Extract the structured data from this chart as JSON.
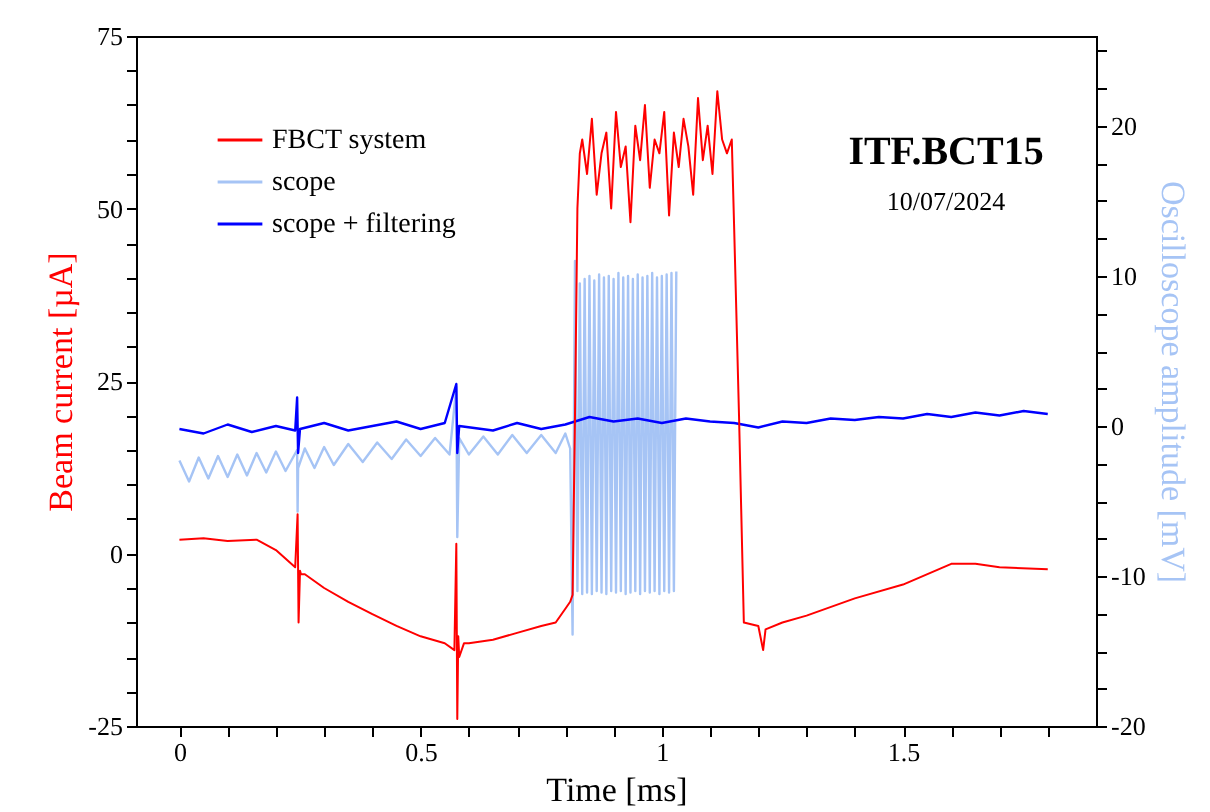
{
  "chart_data": {
    "type": "line",
    "title": "ITF.BCT15",
    "subtitle": "10/07/2024",
    "xlabel": "Time  [ms]",
    "ylabel": "Beam current  [µA]",
    "y2label": "Oscilloscope amplitude  [mV]",
    "xlim": [
      -0.09,
      1.9
    ],
    "xticks": [
      {
        "value": 0,
        "label": "0"
      },
      {
        "value": 0.1,
        "label": null
      },
      {
        "value": 0.2,
        "label": null
      },
      {
        "value": 0.3,
        "label": null
      },
      {
        "value": 0.4,
        "label": null
      },
      {
        "value": 0.5,
        "label": "0.5"
      },
      {
        "value": 0.6,
        "label": null
      },
      {
        "value": 0.7,
        "label": null
      },
      {
        "value": 0.8,
        "label": null
      },
      {
        "value": 0.9,
        "label": null
      },
      {
        "value": 1,
        "label": "1"
      },
      {
        "value": 1.1,
        "label": null
      },
      {
        "value": 1.2,
        "label": null
      },
      {
        "value": 1.3,
        "label": null
      },
      {
        "value": 1.4,
        "label": null
      },
      {
        "value": 1.5,
        "label": "1.5"
      },
      {
        "value": 1.6,
        "label": null
      },
      {
        "value": 1.7,
        "label": null
      },
      {
        "value": 1.8,
        "label": null
      }
    ],
    "ylim": [
      -25,
      75
    ],
    "yticks": [
      {
        "value": -25,
        "label": "-25"
      },
      {
        "value": -20,
        "label": null
      },
      {
        "value": -15,
        "label": null
      },
      {
        "value": -10,
        "label": null
      },
      {
        "value": -5,
        "label": null
      },
      {
        "value": 0,
        "label": "0"
      },
      {
        "value": 5,
        "label": null
      },
      {
        "value": 10,
        "label": null
      },
      {
        "value": 15,
        "label": null
      },
      {
        "value": 20,
        "label": null
      },
      {
        "value": 25,
        "label": "25"
      },
      {
        "value": 30,
        "label": null
      },
      {
        "value": 35,
        "label": null
      },
      {
        "value": 40,
        "label": null
      },
      {
        "value": 45,
        "label": null
      },
      {
        "value": 50,
        "label": "50"
      },
      {
        "value": 55,
        "label": null
      },
      {
        "value": 60,
        "label": null
      },
      {
        "value": 65,
        "label": null
      },
      {
        "value": 70,
        "label": null
      },
      {
        "value": 75,
        "label": "75"
      }
    ],
    "y2lim": [
      -20,
      26
    ],
    "y2ticks": [
      {
        "value": -20,
        "label": "-20"
      },
      {
        "value": -17.5,
        "label": null
      },
      {
        "value": -15,
        "label": null
      },
      {
        "value": -12.5,
        "label": null
      },
      {
        "value": -10,
        "label": "-10"
      },
      {
        "value": -7.5,
        "label": null
      },
      {
        "value": -5,
        "label": null
      },
      {
        "value": -2.5,
        "label": null
      },
      {
        "value": 0,
        "label": "0"
      },
      {
        "value": 2.5,
        "label": null
      },
      {
        "value": 5,
        "label": null
      },
      {
        "value": 7.5,
        "label": null
      },
      {
        "value": 10,
        "label": "10"
      },
      {
        "value": 12.5,
        "label": null
      },
      {
        "value": 15,
        "label": null
      },
      {
        "value": 17.5,
        "label": null
      },
      {
        "value": 20,
        "label": "20"
      },
      {
        "value": 22.5,
        "label": null
      },
      {
        "value": 25,
        "label": null
      }
    ],
    "grid": false,
    "legend": "top left",
    "marker": "none",
    "line_style": "solid",
    "series": [
      {
        "name": "FBCT system",
        "color": "#ff0000",
        "x": [
          0,
          0.05,
          0.1,
          0.16,
          0.2,
          0.24,
          0.245,
          0.247,
          0.25,
          0.252,
          0.26,
          0.3,
          0.35,
          0.4,
          0.45,
          0.5,
          0.55,
          0.57,
          0.574,
          0.576,
          0.578,
          0.58,
          0.59,
          0.6,
          0.65,
          0.7,
          0.75,
          0.78,
          0.8,
          0.81,
          0.815,
          0.82,
          0.825,
          0.83,
          0.835,
          0.845,
          0.855,
          0.865,
          0.875,
          0.885,
          0.895,
          0.905,
          0.915,
          0.925,
          0.935,
          0.945,
          0.955,
          0.965,
          0.975,
          0.985,
          0.995,
          1.005,
          1.015,
          1.025,
          1.035,
          1.045,
          1.055,
          1.065,
          1.075,
          1.085,
          1.095,
          1.105,
          1.115,
          1.125,
          1.135,
          1.145,
          1.15,
          1.16,
          1.17,
          1.2,
          1.21,
          1.215,
          1.25,
          1.3,
          1.4,
          1.5,
          1.6,
          1.65,
          1.7,
          1.8
        ],
        "values": [
          2,
          2.2,
          1.8,
          2,
          0.5,
          -2,
          5.7,
          -10,
          -2.5,
          -3,
          -3,
          -5,
          -7,
          -8.8,
          -10.5,
          -12,
          -13,
          -14,
          1.4,
          -24,
          -12,
          -15,
          -13,
          -13,
          -12.5,
          -11.5,
          -10.5,
          -10,
          -8,
          -7,
          -6,
          20,
          50,
          58,
          60,
          55,
          63,
          52,
          58,
          61,
          50,
          64,
          56,
          59,
          48,
          62,
          57,
          65,
          53,
          60,
          58,
          64,
          49,
          61,
          56,
          63,
          59,
          52,
          66,
          57,
          62,
          55,
          67,
          60,
          58,
          60,
          47,
          20,
          -10,
          -10.5,
          -14,
          -11,
          -10,
          -9,
          -6.5,
          -4.5,
          -1.5,
          -1.5,
          -2,
          -2.3
        ]
      },
      {
        "name": "scope",
        "color": "#a6c4f5",
        "axis": "y2",
        "x": [
          0,
          0.02,
          0.04,
          0.06,
          0.08,
          0.1,
          0.12,
          0.14,
          0.16,
          0.18,
          0.2,
          0.22,
          0.244,
          0.245,
          0.246,
          0.26,
          0.28,
          0.3,
          0.32,
          0.35,
          0.38,
          0.41,
          0.44,
          0.47,
          0.5,
          0.53,
          0.56,
          0.574,
          0.576,
          0.58,
          0.6,
          0.63,
          0.66,
          0.69,
          0.72,
          0.75,
          0.78,
          0.8,
          0.81,
          0.815,
          0.82,
          0.825,
          0.83,
          0.835,
          0.84,
          0.845,
          0.85,
          0.855,
          0.86,
          0.865,
          0.87,
          0.875,
          0.88,
          0.885,
          0.89,
          0.895,
          0.9,
          0.905,
          0.91,
          0.915,
          0.92,
          0.925,
          0.93,
          0.935,
          0.94,
          0.945,
          0.95,
          0.955,
          0.96,
          0.965,
          0.97,
          0.975,
          0.98,
          0.985,
          0.99,
          0.995,
          1,
          1.005,
          1.01,
          1.015,
          1.02,
          1.025,
          1.03
        ],
        "values": [
          -2.3,
          -3.7,
          -2.1,
          -3.5,
          -2,
          -3.4,
          -1.9,
          -3.3,
          -1.8,
          -3.1,
          -1.7,
          -3,
          -1.6,
          -5.7,
          -2.8,
          -1.5,
          -2.8,
          -1.4,
          -2.6,
          -1.2,
          -2.4,
          -1.1,
          -2.2,
          -0.9,
          -2,
          -0.8,
          -1.9,
          2.6,
          -7.4,
          -0.8,
          -1.9,
          -0.7,
          -1.9,
          -0.6,
          -1.8,
          -0.6,
          -1.8,
          -0.5,
          -1.5,
          -13.9,
          11,
          -11,
          9.5,
          -11.2,
          9.8,
          -11.1,
          10,
          -11.2,
          9.7,
          -11,
          10.1,
          -11.1,
          9.9,
          -11.2,
          10,
          -11,
          9.8,
          -11.1,
          10.2,
          -11,
          9.9,
          -11.2,
          10,
          -11.1,
          9.8,
          -11,
          10.1,
          -11.2,
          9.9,
          -11,
          10,
          -11.1,
          10.2,
          -11,
          9.9,
          -11.2,
          10,
          -11,
          10.1,
          -11.1,
          10.2,
          -11,
          10.3
        ]
      },
      {
        "name": "scope + filtering",
        "color": "#0000ff",
        "axis": "y2",
        "x": [
          0,
          0.05,
          0.1,
          0.15,
          0.2,
          0.24,
          0.244,
          0.246,
          0.25,
          0.3,
          0.35,
          0.4,
          0.45,
          0.5,
          0.55,
          0.574,
          0.576,
          0.58,
          0.65,
          0.7,
          0.75,
          0.8,
          0.85,
          0.9,
          0.95,
          1,
          1.05,
          1.1,
          1.15,
          1.2,
          1.25,
          1.3,
          1.35,
          1.4,
          1.45,
          1.5,
          1.55,
          1.6,
          1.65,
          1.7,
          1.75,
          1.8
        ],
        "values": [
          -0.2,
          -0.5,
          0.1,
          -0.4,
          0,
          -0.3,
          1.9,
          -1.8,
          -0.2,
          0.2,
          -0.3,
          0,
          0.3,
          -0.2,
          0.2,
          2.8,
          -1.8,
          0,
          -0.3,
          0.2,
          -0.2,
          0.1,
          0.6,
          0.3,
          0.5,
          0.2,
          0.5,
          0.3,
          0.2,
          -0.1,
          0.3,
          0.2,
          0.5,
          0.4,
          0.6,
          0.5,
          0.8,
          0.6,
          0.9,
          0.7,
          1,
          0.8
        ]
      }
    ]
  }
}
